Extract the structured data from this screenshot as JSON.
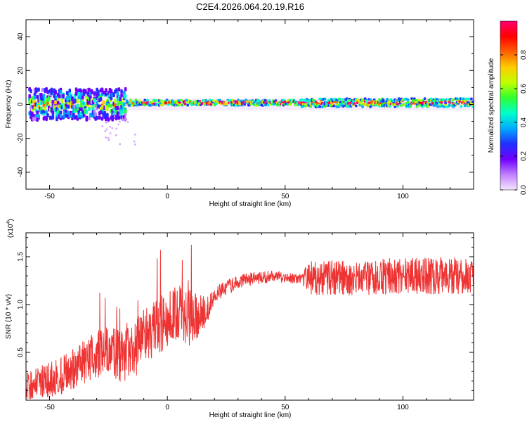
{
  "title": "C2E4.2026.064.20.19.R16",
  "chart_data": [
    {
      "type": "heatmap",
      "name": "spectrogram",
      "xlabel": "Height of straight line (km)",
      "ylabel": "Frequency (Hz)",
      "xlim": [
        -60,
        130
      ],
      "ylim": [
        -50,
        50
      ],
      "xticks": [
        -50,
        0,
        50,
        100
      ],
      "xtick_labels": [
        "-50",
        "0",
        "50",
        "100"
      ],
      "yticks": [
        -40,
        -20,
        0,
        20,
        40
      ],
      "ytick_labels": [
        "-40",
        "-20",
        "0",
        "20",
        "40"
      ],
      "colorbar": {
        "label": "Normalized spectral amplitude",
        "range": [
          0,
          1
        ],
        "ticks": [
          0.0,
          0.2,
          0.4,
          0.6,
          0.8
        ],
        "tick_labels": [
          "0.0",
          "0.2",
          "0.4",
          "0.6",
          "0.8"
        ],
        "colors": [
          "#f5e6ff",
          "#c080ff",
          "#7000ff",
          "#2030ff",
          "#00aaff",
          "#00ffcc",
          "#30ff30",
          "#c0ff00",
          "#ffcc00",
          "#ff6000",
          "#ff0000",
          "#ff0070"
        ]
      }
    },
    {
      "type": "line",
      "name": "snr",
      "xlabel": "Height of straight line (km)",
      "ylabel": "SNR (10 * v/v)",
      "scale_label": "(x10",
      "scale_exp": "4",
      "scale_close": ")",
      "xlim": [
        -60,
        130
      ],
      "ylim": [
        0,
        1.75
      ],
      "xticks": [
        -50,
        0,
        50,
        100
      ],
      "xtick_labels": [
        "-50",
        "0",
        "50",
        "100"
      ],
      "yticks": [
        0.5,
        1.0,
        1.5
      ],
      "ytick_labels": [
        "0.5",
        "1.0",
        "1.5"
      ],
      "color": "#ee3333",
      "trend": {
        "x": [
          -60,
          -45,
          -35,
          -25,
          -20,
          -15,
          -10,
          -5,
          0,
          5,
          10,
          15,
          18,
          20,
          25,
          30,
          35,
          40,
          45,
          50,
          55,
          58,
          60,
          70,
          80,
          90,
          100,
          110,
          120,
          130
        ],
        "y": [
          0.15,
          0.25,
          0.4,
          0.55,
          0.45,
          0.5,
          0.65,
          0.75,
          0.85,
          0.9,
          0.85,
          0.9,
          1.0,
          1.1,
          1.18,
          1.23,
          1.27,
          1.28,
          1.3,
          1.28,
          1.27,
          1.27,
          1.28,
          1.28,
          1.28,
          1.29,
          1.3,
          1.3,
          1.31,
          1.27
        ]
      },
      "noise": {
        "x": [
          -60,
          -30,
          -15,
          10,
          20,
          45,
          57,
          60,
          130
        ],
        "y": [
          0.15,
          0.25,
          0.3,
          0.3,
          0.08,
          0.06,
          0.05,
          0.18,
          0.2
        ]
      }
    }
  ]
}
